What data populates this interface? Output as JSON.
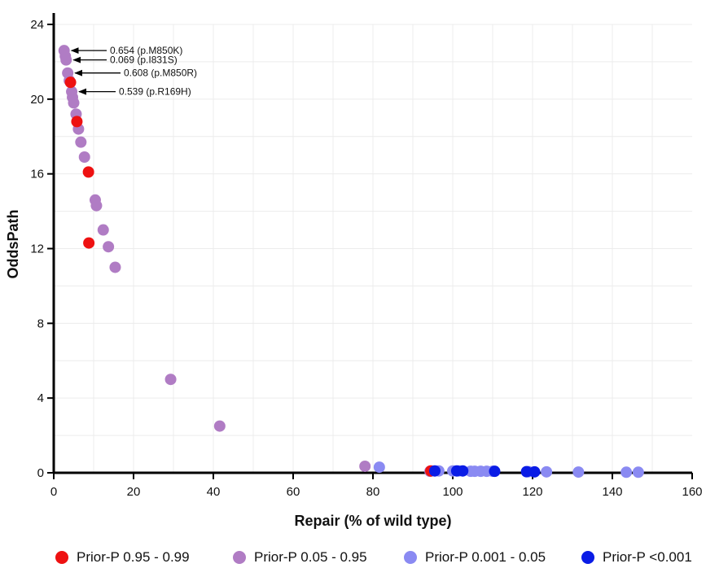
{
  "chart_data": {
    "type": "scatter",
    "xlabel": "Repair (% of wild type)",
    "ylabel": "OddsPath",
    "xlim": [
      0,
      160
    ],
    "ylim": [
      0,
      24
    ],
    "x_ticks": [
      0,
      20,
      40,
      60,
      80,
      100,
      120,
      140,
      160
    ],
    "y_ticks": [
      0,
      4,
      8,
      12,
      16,
      20,
      24
    ],
    "grid": true,
    "legend_position": "bottom",
    "series": [
      {
        "name": "Prior-P 0.95 - 0.99",
        "color": "#ee1111",
        "points": [
          [
            4.2,
            20.9
          ],
          [
            5.8,
            18.8
          ],
          [
            8.7,
            16.1
          ],
          [
            8.8,
            12.3
          ],
          [
            94.5,
            0.1
          ]
        ]
      },
      {
        "name": "Prior-P 0.05 - 0.95",
        "color": "#b07cc4",
        "points": [
          [
            2.6,
            22.6
          ],
          [
            2.9,
            22.3
          ],
          [
            3.1,
            22.1
          ],
          [
            3.5,
            21.4
          ],
          [
            3.9,
            21.0
          ],
          [
            4.5,
            20.4
          ],
          [
            4.7,
            20.1
          ],
          [
            5.0,
            19.8
          ],
          [
            5.6,
            19.2
          ],
          [
            6.2,
            18.4
          ],
          [
            6.8,
            17.7
          ],
          [
            7.7,
            16.9
          ],
          [
            10.4,
            14.6
          ],
          [
            10.7,
            14.3
          ],
          [
            12.4,
            13.0
          ],
          [
            13.7,
            12.1
          ],
          [
            15.4,
            11.0
          ],
          [
            29.3,
            5.0
          ],
          [
            41.6,
            2.5
          ],
          [
            78.0,
            0.35
          ],
          [
            94.3,
            0.08
          ]
        ]
      },
      {
        "name": "Prior-P 0.001 - 0.05",
        "color": "#8a8af2",
        "points": [
          [
            81.6,
            0.3
          ],
          [
            96.5,
            0.1
          ],
          [
            100.0,
            0.1
          ],
          [
            101.5,
            0.1
          ],
          [
            104.5,
            0.08
          ],
          [
            105.5,
            0.08
          ],
          [
            107.0,
            0.08
          ],
          [
            108.5,
            0.08
          ],
          [
            110.0,
            0.08
          ],
          [
            119.0,
            0.06
          ],
          [
            123.5,
            0.05
          ],
          [
            131.5,
            0.04
          ],
          [
            143.5,
            0.03
          ],
          [
            146.5,
            0.03
          ]
        ]
      },
      {
        "name": "Prior-P <0.001",
        "color": "#0a1ce6",
        "points": [
          [
            95.5,
            0.1
          ],
          [
            101.0,
            0.1
          ],
          [
            102.5,
            0.1
          ],
          [
            110.5,
            0.08
          ],
          [
            118.5,
            0.06
          ],
          [
            120.5,
            0.05
          ]
        ]
      }
    ],
    "annotations": [
      {
        "text": "0.654 (p.M850K)",
        "x": 2.6,
        "y": 22.6
      },
      {
        "text": "0.069 (p.I831S)",
        "x": 3.1,
        "y": 22.1
      },
      {
        "text": "0.608 (p.M850R)",
        "x": 3.5,
        "y": 21.4
      },
      {
        "text": "0.539 (p.R169H)",
        "x": 4.5,
        "y": 20.4
      }
    ]
  }
}
